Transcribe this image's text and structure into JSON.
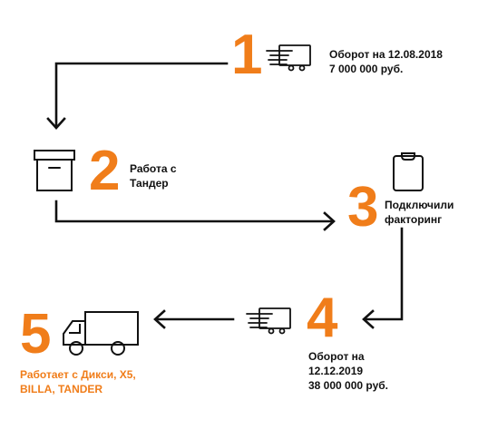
{
  "colors": {
    "accent": "#f07d1a",
    "ink": "#111111"
  },
  "steps": [
    {
      "number": "1",
      "icon": "hand-card-icon",
      "lines": [
        "Оборот на 12.08.2018",
        "7 000 000 руб."
      ]
    },
    {
      "number": "2",
      "icon": "box-icon",
      "lines": [
        "Работа с",
        "Тандер"
      ]
    },
    {
      "number": "3",
      "icon": "clipboard-icon",
      "lines": [
        "Подключили",
        "факторинг"
      ]
    },
    {
      "number": "4",
      "icon": "hand-card-icon",
      "lines": [
        "Оборот на",
        "12.12.2019",
        "38 000 000 руб."
      ]
    },
    {
      "number": "5",
      "icon": "truck-icon",
      "lines": [
        "Работает с Дикси, X5,",
        "BILLA, TANDER"
      ]
    }
  ]
}
